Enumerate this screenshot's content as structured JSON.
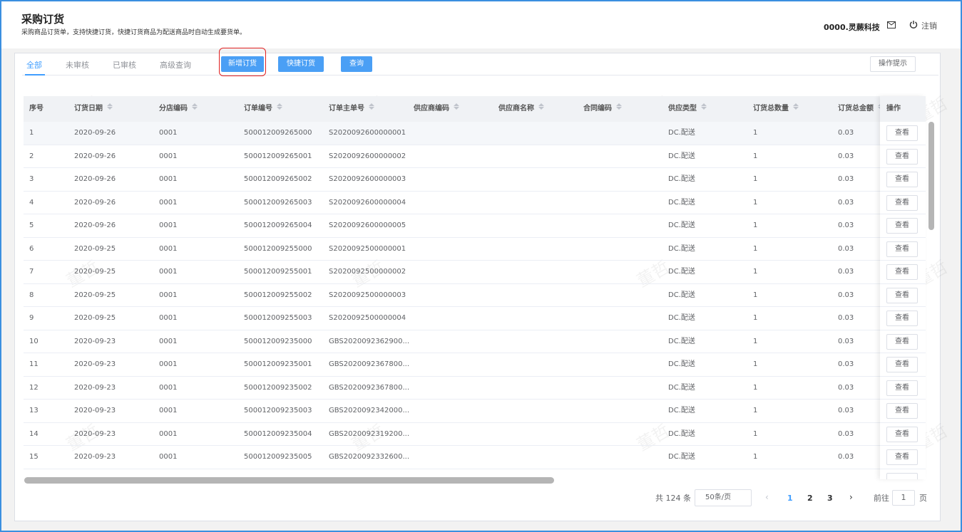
{
  "header": {
    "title": "采购订货",
    "subtitle": "采购商品订货单，支持快捷订货，快捷订货商品为配送商品时自动生成要货单。",
    "company": "0000.灵蕨科技",
    "logout": "注销"
  },
  "tabs": [
    "全部",
    "未审核",
    "已审核",
    "高级查询"
  ],
  "buttons": [
    "新增订货",
    "快捷订货",
    "查询"
  ],
  "help": "操作提示",
  "watermark": "董哲",
  "table": {
    "columns": [
      "序号",
      "订货日期",
      "分店编码",
      "订单编号",
      "订单主单号",
      "供应商编码",
      "供应商名称",
      "合同编码",
      "供应类型",
      "订货总数量",
      "订货总金额",
      "操作"
    ],
    "action": "查看",
    "rows": [
      [
        "1",
        "2020-09-26",
        "0001",
        "500012009265000",
        "S2020092600000001",
        "",
        "",
        "",
        "DC.配送",
        "1",
        "0.03"
      ],
      [
        "2",
        "2020-09-26",
        "0001",
        "500012009265001",
        "S2020092600000002",
        "",
        "",
        "",
        "DC.配送",
        "1",
        "0.03"
      ],
      [
        "3",
        "2020-09-26",
        "0001",
        "500012009265002",
        "S2020092600000003",
        "",
        "",
        "",
        "DC.配送",
        "1",
        "0.03"
      ],
      [
        "4",
        "2020-09-26",
        "0001",
        "500012009265003",
        "S2020092600000004",
        "",
        "",
        "",
        "DC.配送",
        "1",
        "0.03"
      ],
      [
        "5",
        "2020-09-26",
        "0001",
        "500012009265004",
        "S2020092600000005",
        "",
        "",
        "",
        "DC.配送",
        "1",
        "0.03"
      ],
      [
        "6",
        "2020-09-25",
        "0001",
        "500012009255000",
        "S2020092500000001",
        "",
        "",
        "",
        "DC.配送",
        "1",
        "0.03"
      ],
      [
        "7",
        "2020-09-25",
        "0001",
        "500012009255001",
        "S2020092500000002",
        "",
        "",
        "",
        "DC.配送",
        "1",
        "0.03"
      ],
      [
        "8",
        "2020-09-25",
        "0001",
        "500012009255002",
        "S2020092500000003",
        "",
        "",
        "",
        "DC.配送",
        "1",
        "0.03"
      ],
      [
        "9",
        "2020-09-25",
        "0001",
        "500012009255003",
        "S2020092500000004",
        "",
        "",
        "",
        "DC.配送",
        "1",
        "0.03"
      ],
      [
        "10",
        "2020-09-23",
        "0001",
        "500012009235000",
        "GBS2020092362900...",
        "",
        "",
        "",
        "DC.配送",
        "1",
        "0.03"
      ],
      [
        "11",
        "2020-09-23",
        "0001",
        "500012009235001",
        "GBS2020092367800...",
        "",
        "",
        "",
        "DC.配送",
        "1",
        "0.03"
      ],
      [
        "12",
        "2020-09-23",
        "0001",
        "500012009235002",
        "GBS2020092367800...",
        "",
        "",
        "",
        "DC.配送",
        "1",
        "0.03"
      ],
      [
        "13",
        "2020-09-23",
        "0001",
        "500012009235003",
        "GBS2020092342000...",
        "",
        "",
        "",
        "DC.配送",
        "1",
        "0.03"
      ],
      [
        "14",
        "2020-09-23",
        "0001",
        "500012009235004",
        "GBS2020092319200...",
        "",
        "",
        "",
        "DC.配送",
        "1",
        "0.03"
      ],
      [
        "15",
        "2020-09-23",
        "0001",
        "500012009235005",
        "GBS2020092332600...",
        "",
        "",
        "",
        "DC.配送",
        "1",
        "0.03"
      ]
    ]
  },
  "pagination": {
    "total": "共 124 条",
    "page_size": "50条/页",
    "pages": [
      "1",
      "2",
      "3"
    ],
    "goto": "前往",
    "goto_value": "1",
    "unit": "页"
  }
}
